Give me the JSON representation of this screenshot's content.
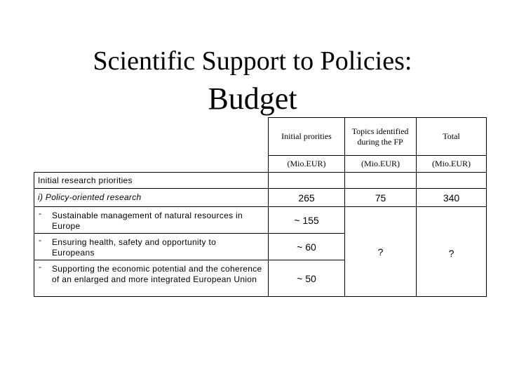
{
  "title": {
    "line1": "Scientific Support to Policies:",
    "line2": "Budget"
  },
  "table": {
    "columns": [
      {
        "header": "Initial prorities",
        "unit": "(Mio.EUR)"
      },
      {
        "header": "Topics identified during the FP",
        "unit": "(Mio.EUR)"
      },
      {
        "header": "Total",
        "unit": "(Mio.EUR)"
      }
    ],
    "section_label": "Initial research priorities",
    "policy_row": {
      "label": "i) Policy-oriented research",
      "initial": "265",
      "topics": "75",
      "total": "340"
    },
    "sub_items": [
      {
        "bullet": "-",
        "label": "Sustainable management of natural resources in Europe",
        "initial": "~ 155"
      },
      {
        "bullet": "-",
        "label": "Ensuring health, safety and opportunity to Europeans",
        "initial": "~ 60"
      },
      {
        "bullet": "-",
        "label": "Supporting the economic potential and the coherence of an enlarged and more integrated European Union",
        "initial": "~ 50"
      }
    ],
    "sub_topics": "?",
    "sub_total": "?"
  }
}
